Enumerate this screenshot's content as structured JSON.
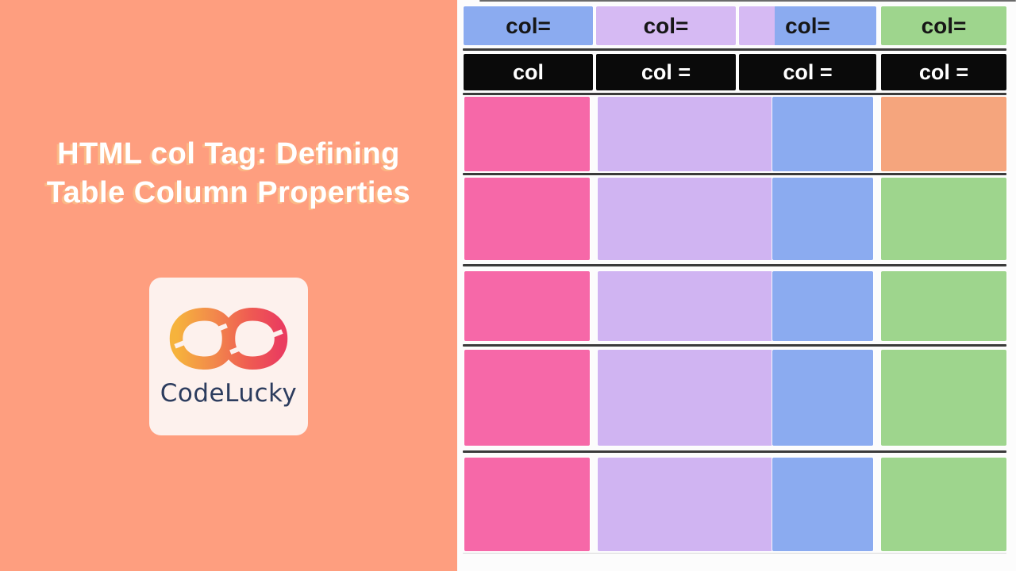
{
  "left_panel": {
    "bg_color": "#fe9e7f",
    "title_line1": "HTML col Tag: Defining",
    "title_line2": "Table Column Properties",
    "logo": {
      "brand": "CodeLucky",
      "card_color": "#fdf1ed",
      "wordmark_color": "#2c3c5e",
      "icon_name": "infinity-gradient-icon",
      "icon_gradient": [
        "#f6b33c",
        "#f28a4b",
        "#ef5b52",
        "#ea3d5f"
      ]
    }
  },
  "right_panel": {
    "bg_color": "#fcfcfc"
  },
  "table": {
    "header_row": {
      "cells": [
        {
          "label": "col=",
          "bg": "#8babf0"
        },
        {
          "label": "col=",
          "bg": "#d6baf3"
        },
        {
          "label": "col=",
          "bg": "#8babf0",
          "left_strip_bg": "#d6baf3"
        },
        {
          "label": "col=",
          "bg": "#9ed58d"
        }
      ],
      "text_color": "#161616"
    },
    "unit_row": {
      "cells": [
        {
          "label": "col",
          "bg": "#0a0a0a"
        },
        {
          "label": "col =",
          "bg": "#0a0a0a"
        },
        {
          "label": "col =",
          "bg": "#0a0a0a"
        },
        {
          "label": "col =",
          "bg": "#0a0a0a"
        }
      ],
      "text_color": "#ffffff"
    },
    "body_rows": [
      {
        "cells": [
          "#f668a8",
          "#d0b4f2",
          "#8babf0",
          "#f5a57d"
        ]
      },
      {
        "cells": [
          "#f668a8",
          "#d0b4f2",
          "#8babf0",
          "#9ed58d"
        ]
      },
      {
        "cells": [
          "#f668a8",
          "#d0b4f2",
          "#8babf0",
          "#9ed58d"
        ]
      },
      {
        "cells": [
          "#f668a8",
          "#d0b4f2",
          "#8babf0",
          "#9ed58d"
        ]
      },
      {
        "cells": [
          "#f668a8",
          "#d0b4f2",
          "#8babf0",
          "#9ed58d"
        ]
      }
    ],
    "separator_color": "#3a3a3a"
  }
}
